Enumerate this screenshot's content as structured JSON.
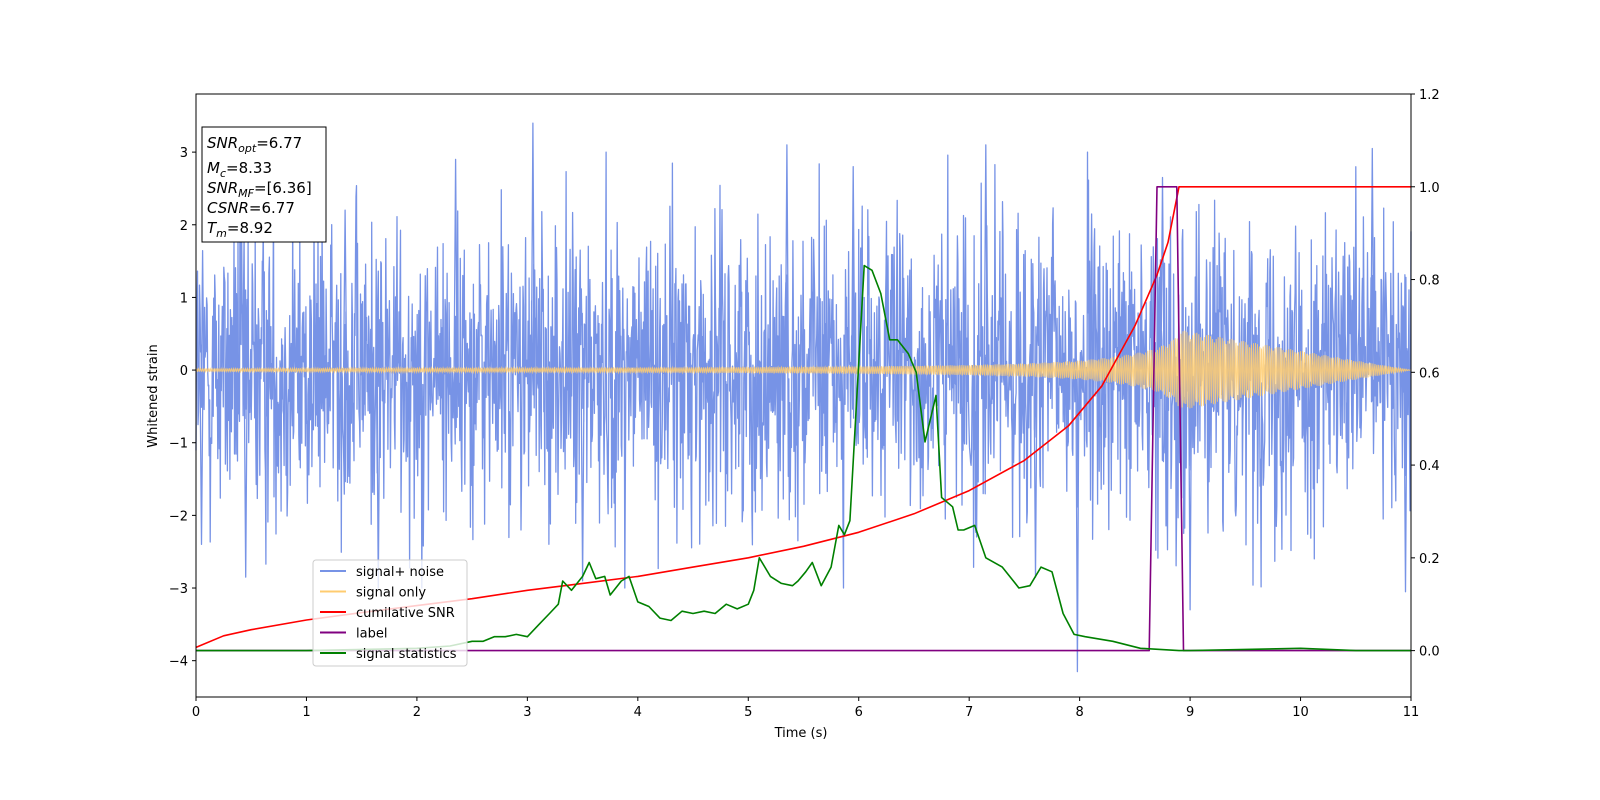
{
  "chart_data": {
    "type": "line",
    "title": "",
    "xlabel": "Time (s)",
    "ylabel": "Whitened strain",
    "xlim": [
      0,
      11
    ],
    "ylim": [
      -4.5,
      3.8
    ],
    "y2lim": [
      -0.1,
      1.2
    ],
    "x_ticks": [
      "0",
      "1",
      "2",
      "3",
      "4",
      "5",
      "6",
      "7",
      "8",
      "9",
      "10",
      "11"
    ],
    "y_ticks": [
      "−4",
      "−3",
      "−2",
      "−1",
      "0",
      "1",
      "2",
      "3"
    ],
    "y_tick_values": [
      -4,
      -3,
      -2,
      -1,
      0,
      1,
      2,
      3
    ],
    "y2_ticks": [
      "0.0",
      "0.2",
      "0.4",
      "0.6",
      "0.8",
      "1.0",
      "1.2"
    ],
    "y2_tick_values": [
      0.0,
      0.2,
      0.4,
      0.6,
      0.8,
      1.0,
      1.2
    ],
    "grid": false,
    "legend_position": "lower-left",
    "info_box": {
      "lines": [
        {
          "main": "SNR",
          "sub": "opt",
          "value": "=6.77"
        },
        {
          "main": "M",
          "sub": "c",
          "value": "=8.33"
        },
        {
          "main": "SNR",
          "sub": "MF",
          "value": "=[6.36]"
        },
        {
          "main": "CSNR",
          "sub": "",
          "value": "=6.77"
        },
        {
          "main": "T",
          "sub": "m",
          "value": "=8.92"
        }
      ]
    },
    "series": [
      {
        "name": "signal+ noise",
        "axis": "left",
        "color": "#7793e6",
        "kind": "noise",
        "sample_x": [
          0.05,
          0.45,
          1.35,
          1.65,
          2.35,
          3.05,
          3.5,
          5.35,
          5.95,
          7.15,
          7.6,
          7.98,
          8.75,
          9.0,
          10.65,
          10.95
        ],
        "sample_y": [
          -2.4,
          -2.85,
          2.2,
          -3.0,
          2.9,
          3.4,
          -2.9,
          3.1,
          2.8,
          3.1,
          -2.85,
          -4.15,
          2.65,
          -3.3,
          3.05,
          -3.05
        ]
      },
      {
        "name": "signal only",
        "axis": "left",
        "color": "#ffcc70",
        "kind": "chirp",
        "x": [
          0,
          2,
          4,
          5,
          6,
          7,
          7.5,
          8,
          8.3,
          8.5,
          8.7,
          8.85,
          8.92,
          11
        ],
        "envelope": [
          0.02,
          0.03,
          0.035,
          0.04,
          0.05,
          0.07,
          0.09,
          0.13,
          0.18,
          0.23,
          0.3,
          0.42,
          0.55,
          0
        ]
      },
      {
        "name": "cumilative SNR",
        "axis": "right",
        "color": "#ff0000",
        "x": [
          0,
          0.25,
          0.5,
          1,
          1.5,
          2,
          2.5,
          3,
          3.5,
          4,
          4.5,
          5,
          5.5,
          6,
          6.5,
          7,
          7.5,
          7.9,
          8.2,
          8.5,
          8.7,
          8.8,
          8.9,
          11
        ],
        "y": [
          0.007,
          0.032,
          0.045,
          0.066,
          0.082,
          0.097,
          0.112,
          0.13,
          0.145,
          0.16,
          0.18,
          0.2,
          0.225,
          0.255,
          0.295,
          0.345,
          0.41,
          0.485,
          0.57,
          0.7,
          0.81,
          0.88,
          1.0,
          1.0
        ]
      },
      {
        "name": "label",
        "axis": "right",
        "color": "#800080",
        "x": [
          0,
          8.63,
          8.7,
          8.88,
          8.94,
          11
        ],
        "y": [
          0,
          0,
          1,
          1,
          0,
          0
        ]
      },
      {
        "name": "signal statistics",
        "axis": "right",
        "color": "#008000",
        "x": [
          0,
          1,
          2,
          2.3,
          2.5,
          2.6,
          2.7,
          2.8,
          2.9,
          3.0,
          3.1,
          3.2,
          3.28,
          3.32,
          3.4,
          3.5,
          3.56,
          3.62,
          3.7,
          3.75,
          3.85,
          3.92,
          4.0,
          4.1,
          4.2,
          4.3,
          4.4,
          4.5,
          4.6,
          4.7,
          4.8,
          4.9,
          5.0,
          5.05,
          5.1,
          5.2,
          5.3,
          5.4,
          5.45,
          5.52,
          5.58,
          5.66,
          5.75,
          5.82,
          5.87,
          5.92,
          6.05,
          6.12,
          6.2,
          6.28,
          6.35,
          6.45,
          6.52,
          6.6,
          6.7,
          6.75,
          6.85,
          6.9,
          6.95,
          7.05,
          7.15,
          7.3,
          7.4,
          7.45,
          7.55,
          7.65,
          7.75,
          7.85,
          7.95,
          8.05,
          8.3,
          8.55,
          8.9,
          9.0,
          10,
          10.5,
          11
        ],
        "y": [
          0.0,
          0.0,
          0.005,
          0.01,
          0.02,
          0.02,
          0.03,
          0.03,
          0.035,
          0.03,
          0.055,
          0.08,
          0.1,
          0.15,
          0.13,
          0.16,
          0.19,
          0.155,
          0.16,
          0.12,
          0.15,
          0.16,
          0.105,
          0.095,
          0.07,
          0.065,
          0.085,
          0.08,
          0.085,
          0.08,
          0.1,
          0.09,
          0.1,
          0.13,
          0.2,
          0.16,
          0.145,
          0.14,
          0.15,
          0.17,
          0.19,
          0.14,
          0.18,
          0.27,
          0.25,
          0.28,
          0.83,
          0.82,
          0.77,
          0.67,
          0.67,
          0.64,
          0.6,
          0.45,
          0.55,
          0.33,
          0.31,
          0.26,
          0.26,
          0.27,
          0.2,
          0.18,
          0.15,
          0.135,
          0.14,
          0.18,
          0.17,
          0.08,
          0.035,
          0.03,
          0.02,
          0.005,
          0.0,
          0.0,
          0.005,
          0.0,
          0.0
        ]
      }
    ]
  }
}
